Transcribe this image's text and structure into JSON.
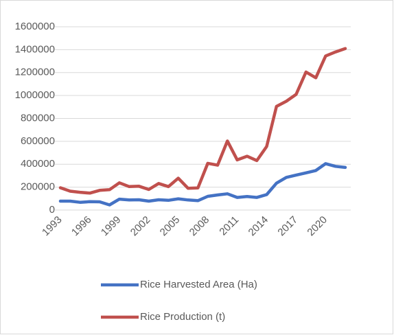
{
  "chart_data": {
    "type": "line",
    "categories": [
      "1993",
      null,
      null,
      "1996",
      null,
      null,
      "1999",
      null,
      null,
      "2002",
      null,
      null,
      "2005",
      null,
      null,
      "2008",
      null,
      null,
      "2011",
      null,
      null,
      "2014",
      null,
      null,
      "2017",
      null,
      null,
      "2020",
      null,
      null
    ],
    "series": [
      {
        "name": "Rice Harvested Area (Ha)",
        "color": "#4472c4",
        "values": [
          78000,
          78000,
          68000,
          73000,
          72000,
          45000,
          95000,
          88000,
          90000,
          78000,
          90000,
          85000,
          98000,
          88000,
          82000,
          120000,
          132000,
          142000,
          110000,
          118000,
          110000,
          135000,
          235000,
          285000,
          305000,
          325000,
          345000,
          405000,
          382000,
          372000
        ]
      },
      {
        "name": "Rice Production (t)",
        "color": "#c0504d",
        "values": [
          195000,
          165000,
          155000,
          148000,
          172000,
          178000,
          238000,
          205000,
          208000,
          180000,
          232000,
          205000,
          278000,
          190000,
          193000,
          408000,
          392000,
          603000,
          438000,
          470000,
          432000,
          555000,
          905000,
          950000,
          1010000,
          1205000,
          1155000,
          1345000,
          1380000,
          1410000
        ]
      }
    ],
    "ylim": [
      0,
      1600000
    ],
    "yticks": [
      0,
      200000,
      400000,
      600000,
      800000,
      1000000,
      1200000,
      1400000,
      1600000
    ],
    "grid": true,
    "legend": "bottom"
  }
}
